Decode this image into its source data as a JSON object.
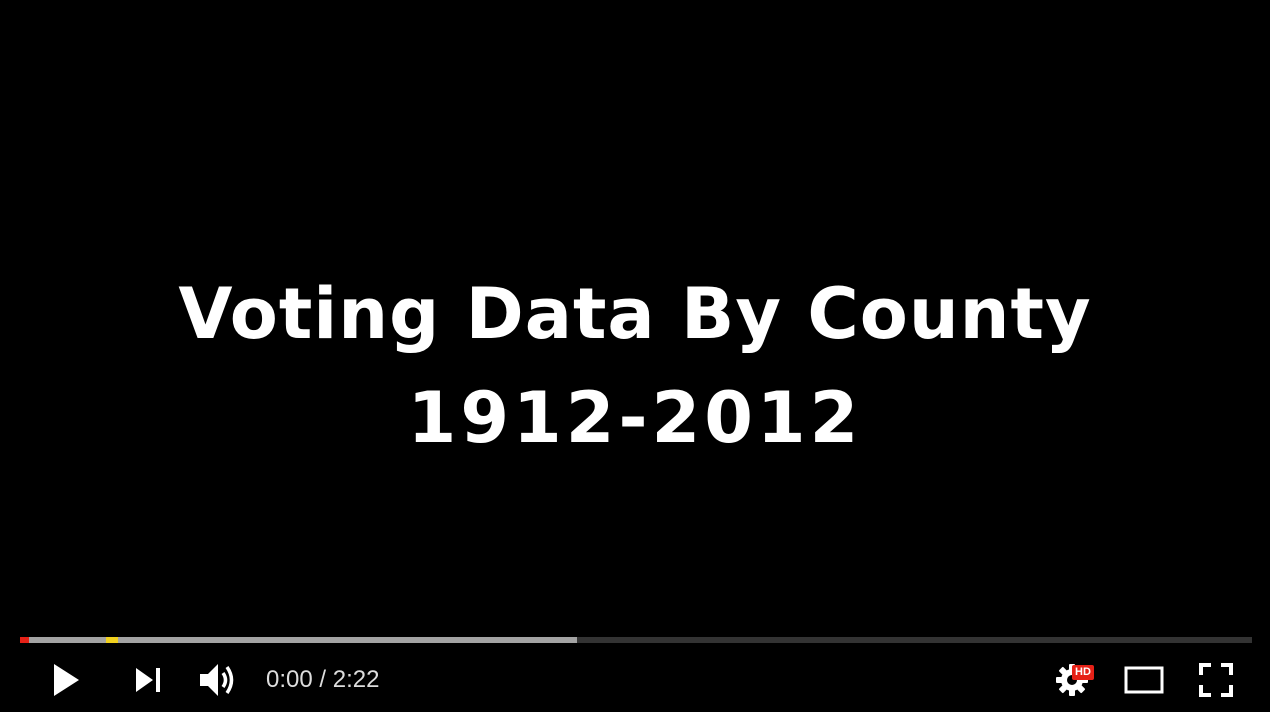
{
  "video": {
    "title_line_1": "Voting Data By County",
    "title_line_2": "1912-2012"
  },
  "progress": {
    "played_fraction": 0.007,
    "buffered_fraction": 0.452,
    "marker_fraction": 0.07,
    "colors": {
      "played": "#e62117",
      "marker": "#f1d11f"
    }
  },
  "controls": {
    "current_time": "0:00",
    "separator": " / ",
    "duration": "2:22",
    "hd_label": "HD",
    "icons": {
      "play": "play-icon",
      "next": "next-icon",
      "volume": "volume-icon",
      "settings": "gear-icon",
      "theater": "theater-mode-icon",
      "fullscreen": "fullscreen-icon"
    }
  }
}
